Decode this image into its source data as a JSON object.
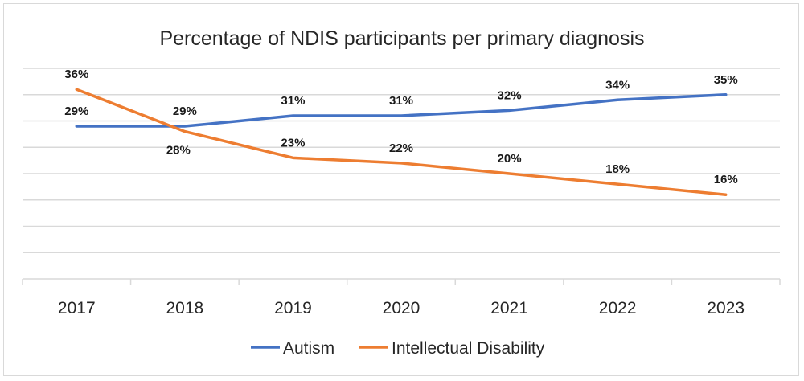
{
  "chart_data": {
    "type": "line",
    "title": "Percentage of NDIS participants per primary diagnosis",
    "categories": [
      "2017",
      "2018",
      "2019",
      "2020",
      "2021",
      "2022",
      "2023"
    ],
    "series": [
      {
        "name": "Autism",
        "values": [
          29,
          29,
          31,
          31,
          32,
          34,
          35
        ],
        "labels": [
          "29%",
          "29%",
          "31%",
          "31%",
          "32%",
          "34%",
          "35%"
        ],
        "color": "#4472C4"
      },
      {
        "name": "Intellectual Disability",
        "values": [
          36,
          28,
          23,
          22,
          20,
          18,
          16
        ],
        "labels": [
          "36%",
          "28%",
          "23%",
          "22%",
          "20%",
          "18%",
          "16%"
        ],
        "color": "#ED7D31"
      }
    ],
    "ylim": [
      0,
      40
    ],
    "y_gridline_step": 5,
    "y_tick_labels_shown": false,
    "grid": true,
    "legend": "bottom",
    "xlabel": "",
    "ylabel": ""
  }
}
